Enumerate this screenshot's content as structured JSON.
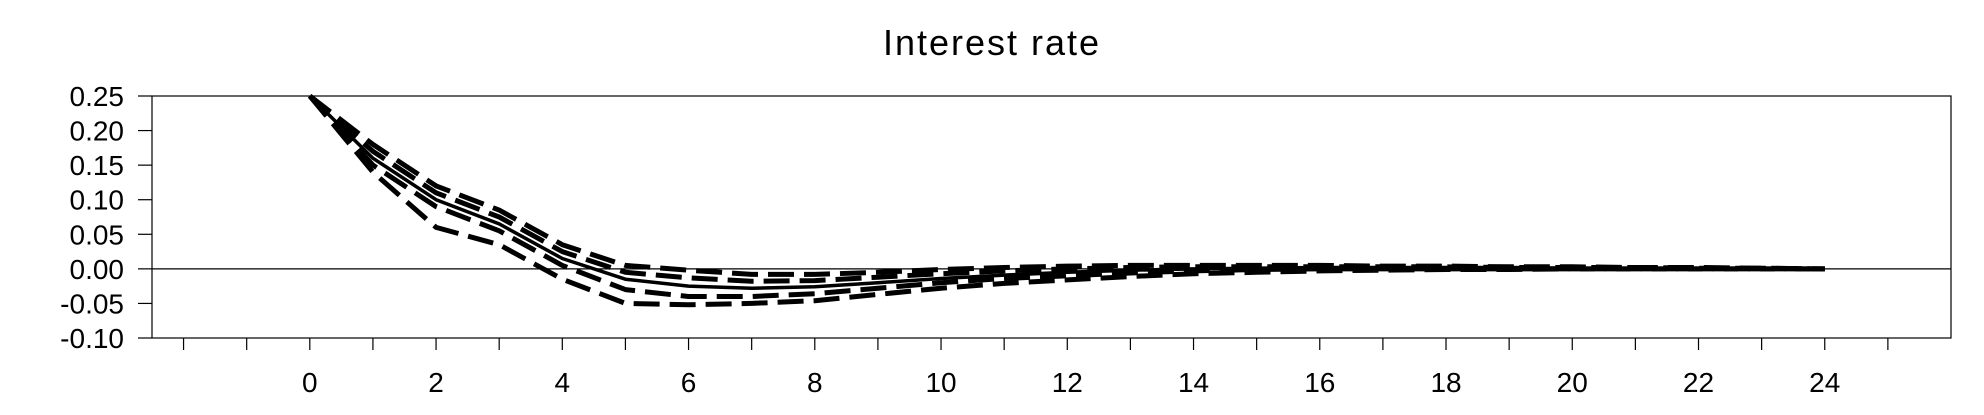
{
  "chart_data": {
    "type": "line",
    "title": "Interest rate",
    "xlabel": "",
    "ylabel": "",
    "xlim": [
      -2.5,
      26
    ],
    "ylim": [
      -0.1,
      0.25
    ],
    "x_ticks": [
      0,
      2,
      4,
      6,
      8,
      10,
      12,
      14,
      16,
      18,
      20,
      22,
      24
    ],
    "y_ticks": [
      0.25,
      0.2,
      0.15,
      0.1,
      0.05,
      0.0,
      -0.05,
      -0.1
    ],
    "y_tick_labels": [
      "0.25",
      "0.20",
      "0.15",
      "0.10",
      "0.05",
      "0.00",
      "-0.05",
      "-0.10"
    ],
    "zero_line": true,
    "grid": false,
    "x": [
      0,
      1,
      2,
      3,
      4,
      5,
      6,
      7,
      8,
      9,
      10,
      11,
      12,
      13,
      14,
      15,
      16,
      17,
      18,
      19,
      20,
      21,
      22,
      23,
      24
    ],
    "series": [
      {
        "style": "solid",
        "values": [
          0.25,
          0.16,
          0.1,
          0.065,
          0.015,
          -0.015,
          -0.025,
          -0.028,
          -0.026,
          -0.02,
          -0.014,
          -0.009,
          -0.005,
          -0.002,
          0.0,
          0.001,
          0.002,
          0.002,
          0.002,
          0.002,
          0.001,
          0.001,
          0.001,
          0.001,
          0.0
        ]
      },
      {
        "style": "dashed",
        "values": [
          0.25,
          0.18,
          0.12,
          0.085,
          0.035,
          0.005,
          -0.002,
          -0.008,
          -0.008,
          -0.005,
          -0.001,
          0.002,
          0.004,
          0.005,
          0.005,
          0.005,
          0.005,
          0.004,
          0.004,
          0.003,
          0.003,
          0.002,
          0.002,
          0.001,
          0.0
        ]
      },
      {
        "style": "dashed",
        "values": [
          0.25,
          0.17,
          0.11,
          0.075,
          0.025,
          -0.005,
          -0.013,
          -0.018,
          -0.017,
          -0.012,
          -0.007,
          -0.003,
          0.0,
          0.002,
          0.003,
          0.003,
          0.003,
          0.003,
          0.003,
          0.002,
          0.002,
          0.002,
          0.001,
          0.001,
          0.0
        ]
      },
      {
        "style": "dashed",
        "values": [
          0.25,
          0.15,
          0.09,
          0.055,
          0.005,
          -0.03,
          -0.04,
          -0.04,
          -0.036,
          -0.028,
          -0.02,
          -0.014,
          -0.01,
          -0.006,
          -0.003,
          -0.001,
          0.0,
          0.0,
          0.0,
          0.0,
          0.0,
          0.0,
          0.0,
          0.0,
          0.0
        ]
      },
      {
        "style": "dashed",
        "values": [
          0.25,
          0.14,
          0.06,
          0.035,
          -0.015,
          -0.05,
          -0.052,
          -0.05,
          -0.046,
          -0.037,
          -0.028,
          -0.021,
          -0.016,
          -0.011,
          -0.007,
          -0.005,
          -0.003,
          -0.002,
          -0.001,
          -0.001,
          0.0,
          0.0,
          0.0,
          0.0,
          0.0
        ]
      }
    ],
    "line_color": "#000000"
  }
}
